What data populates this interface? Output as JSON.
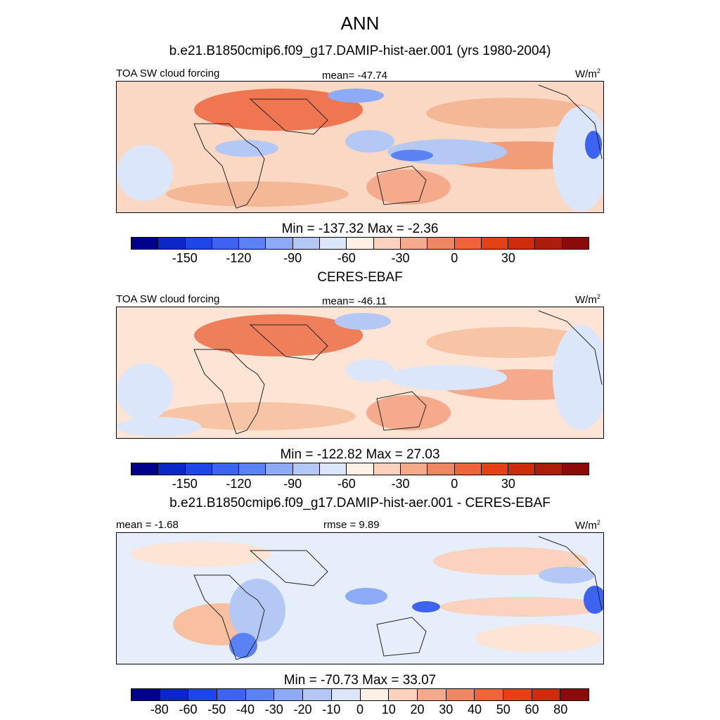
{
  "figure": {
    "title": "ANN",
    "subtitle": "b.e21.B1850cmip6.f09_g17.DAMIP-hist-aer.001 (yrs 1980-2004)"
  },
  "colors": {
    "main": [
      "#00008c",
      "#0a28c8",
      "#1e46e6",
      "#3c64f0",
      "#5a82f5",
      "#8caaf5",
      "#b4c8f5",
      "#dce6fa",
      "#fff0e6",
      "#fad2be",
      "#f5aa8c",
      "#f08764",
      "#f0643c",
      "#e64114",
      "#cd2d0a",
      "#aa1e0a",
      "#8c0a0a"
    ],
    "diff": [
      "#00008c",
      "#0a28c8",
      "#1e46e6",
      "#3c64f0",
      "#5a82f5",
      "#8caaf5",
      "#b4c8f5",
      "#dce6fa",
      "#fff0e6",
      "#fad2be",
      "#f5aa8c",
      "#f08764",
      "#f0643c",
      "#e64114",
      "#cd2d0a",
      "#8c0a0a"
    ],
    "ocean_main": "#ffe8d8",
    "ocean_diff": "#dce6fa"
  },
  "panels": [
    {
      "header_left": "TOA SW cloud forcing",
      "header_center": "mean= -47.74",
      "units_base": "W/m",
      "units_exp": "2",
      "minmax": "Min = -137.32 Max =  -2.36",
      "ticks": [
        "-150",
        "-120",
        "-90",
        "-60",
        "-30",
        "0",
        "30"
      ]
    },
    {
      "title": "CERES-EBAF",
      "header_left": "TOA SW cloud forcing",
      "header_center": "mean= -46.11",
      "units_base": "W/m",
      "units_exp": "2",
      "minmax": "Min = -122.82 Max =  27.03",
      "ticks": [
        "-150",
        "-120",
        "-90",
        "-60",
        "-30",
        "0",
        "30"
      ]
    },
    {
      "title": "b.e21.B1850cmip6.f09_g17.DAMIP-hist-aer.001 - CERES-EBAF",
      "header_left": "mean =  -1.68",
      "header_center": "rmse =   9.89",
      "units_base": "W/m",
      "units_exp": "2",
      "minmax": "Min = -70.73 Max =  33.07",
      "ticks": [
        "-80",
        "-60",
        "-50",
        "-40",
        "-30",
        "-20",
        "-10",
        "0",
        "10",
        "20",
        "30",
        "40",
        "50",
        "60",
        "80"
      ]
    }
  ]
}
